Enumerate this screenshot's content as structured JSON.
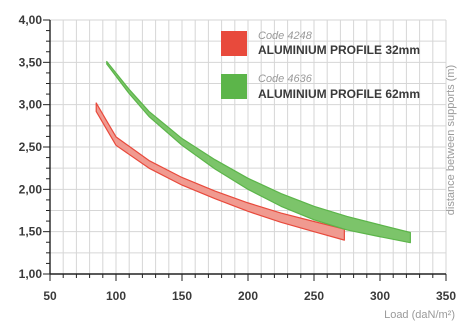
{
  "chart_data": {
    "type": "area",
    "xlabel": "Load (daN/m²)",
    "ylabel": "distance between supports (m)",
    "xlim": [
      50,
      350
    ],
    "ylim": [
      1.0,
      4.0
    ],
    "x_ticks": [
      "50",
      "100",
      "150",
      "200",
      "250",
      "300",
      "350"
    ],
    "y_ticks": [
      "1,00",
      "1,50",
      "2,00",
      "2,50",
      "3,00",
      "3,50",
      "4,00"
    ],
    "x_tick_values": [
      50,
      100,
      150,
      200,
      250,
      300,
      350
    ],
    "y_tick_values": [
      1.0,
      1.5,
      2.0,
      2.5,
      3.0,
      3.5,
      4.0
    ],
    "grid": true,
    "legend_position": "top-right",
    "series": [
      {
        "code": "Code 4248",
        "name": "ALUMINIUM PROFILE 32mm",
        "color": "#e84a3c",
        "fill": "#f09a90",
        "upper": [
          [
            85,
            3.02
          ],
          [
            100,
            2.62
          ],
          [
            125,
            2.34
          ],
          [
            150,
            2.14
          ],
          [
            175,
            1.98
          ],
          [
            200,
            1.84
          ],
          [
            225,
            1.72
          ],
          [
            250,
            1.62
          ],
          [
            273,
            1.53
          ]
        ],
        "lower": [
          [
            85,
            2.92
          ],
          [
            100,
            2.52
          ],
          [
            125,
            2.25
          ],
          [
            150,
            2.05
          ],
          [
            175,
            1.89
          ],
          [
            200,
            1.74
          ],
          [
            225,
            1.61
          ],
          [
            250,
            1.5
          ],
          [
            273,
            1.4
          ]
        ]
      },
      {
        "code": "Code 4636",
        "name": "ALUMINIUM PROFILE 62mm",
        "color": "#5cb54a",
        "fill": "#7cc46a",
        "upper": [
          [
            93,
            3.51
          ],
          [
            110,
            3.18
          ],
          [
            125,
            2.92
          ],
          [
            150,
            2.6
          ],
          [
            175,
            2.35
          ],
          [
            200,
            2.13
          ],
          [
            225,
            1.95
          ],
          [
            250,
            1.8
          ],
          [
            275,
            1.68
          ],
          [
            300,
            1.58
          ],
          [
            323,
            1.49
          ]
        ],
        "lower": [
          [
            93,
            3.48
          ],
          [
            110,
            3.13
          ],
          [
            125,
            2.86
          ],
          [
            150,
            2.52
          ],
          [
            175,
            2.24
          ],
          [
            200,
            2.0
          ],
          [
            225,
            1.8
          ],
          [
            250,
            1.64
          ],
          [
            275,
            1.52
          ],
          [
            300,
            1.44
          ],
          [
            323,
            1.37
          ]
        ]
      }
    ]
  }
}
